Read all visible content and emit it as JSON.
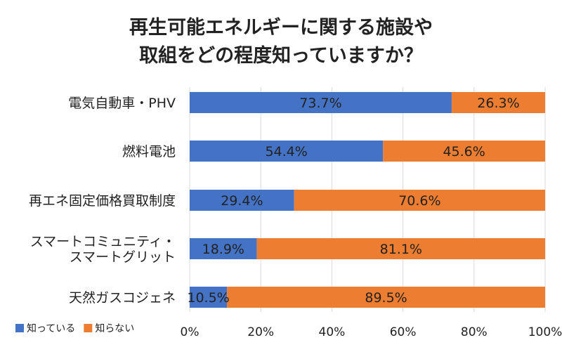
{
  "chart_data": {
    "type": "bar",
    "orientation": "horizontal",
    "stacked": true,
    "title_lines": [
      "再生可能エネルギーに関する施設や",
      "取組をどの程度知っていますか？"
    ],
    "categories": [
      [
        "電気自動車・PHV"
      ],
      [
        "燃料電池"
      ],
      [
        "再エネ固定価格買取制度"
      ],
      [
        "スマートコミュニティ・",
        "スマートグリット"
      ],
      [
        "天然ガスコジェネ"
      ]
    ],
    "series": [
      {
        "name": "知っている",
        "color": "#4472C4",
        "values": [
          73.7,
          54.4,
          29.4,
          18.9,
          10.5
        ],
        "labels": [
          "73.7%",
          "54.4%",
          "29.4%",
          "18.9%",
          "10.5%"
        ]
      },
      {
        "name": "知らない",
        "color": "#ED7D31",
        "values": [
          26.3,
          45.6,
          70.6,
          81.1,
          89.5
        ],
        "labels": [
          "26.3%",
          "45.6%",
          "70.6%",
          "81.1%",
          "89.5%"
        ]
      }
    ],
    "xlim": [
      0,
      100
    ],
    "xticks": [
      "0%",
      "20%",
      "40%",
      "60%",
      "80%",
      "100%"
    ],
    "grid": true,
    "legend_position": "bottom-left"
  }
}
